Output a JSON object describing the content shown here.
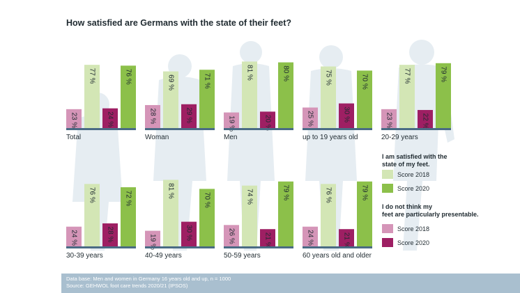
{
  "chart_data": {
    "type": "bar",
    "title": "How satisfied are Germans with the state of their feet?",
    "categories": [
      "Total",
      "Woman",
      "Men",
      "up to 19 years old",
      "20-29 years",
      "30-39 years",
      "40-49 years",
      "50-59 years",
      "60 years old and older"
    ],
    "series": [
      {
        "name": "Score 2018",
        "group": "I am satisfied with the state of my feet.",
        "color": "#d3e6b5",
        "values": [
          77,
          69,
          81,
          75,
          77,
          76,
          81,
          74,
          76
        ]
      },
      {
        "name": "Score 2020",
        "group": "I am satisfied with the state of my feet.",
        "color": "#8cc04a",
        "values": [
          76,
          71,
          80,
          70,
          79,
          72,
          70,
          79,
          79
        ]
      },
      {
        "name": "Score 2018",
        "group": "I do not think my feet are particularly presentable.",
        "color": "#d595b8",
        "values": [
          23,
          28,
          19,
          25,
          23,
          24,
          19,
          26,
          24
        ]
      },
      {
        "name": "Score 2020",
        "group": "I do not think my feet are particularly presentable.",
        "color": "#9e1f63",
        "values": [
          24,
          29,
          20,
          30,
          22,
          28,
          30,
          21,
          21
        ]
      }
    ],
    "value_suffix": " %",
    "ylim": [
      0,
      100
    ],
    "grid": false,
    "legend_placement": "right",
    "legend": {
      "groups": [
        {
          "title": "I am satisfied with the state of my feet.",
          "items": [
            "Score 2018",
            "Score 2020"
          ]
        },
        {
          "title": "I do not think my feet are particularly presentable.",
          "items": [
            "Score 2018",
            "Score 2020"
          ]
        }
      ]
    },
    "footnote": [
      "Data base: Men and women in Germany 16 years old and up, n = 1000",
      "Source: GEHWOL foot care trends 2020/21 (IPSOS)"
    ]
  },
  "colors": {
    "baseline": "#4a6b85",
    "footer_band": "#a9bfcf",
    "silhouette": "#e6edf2"
  }
}
